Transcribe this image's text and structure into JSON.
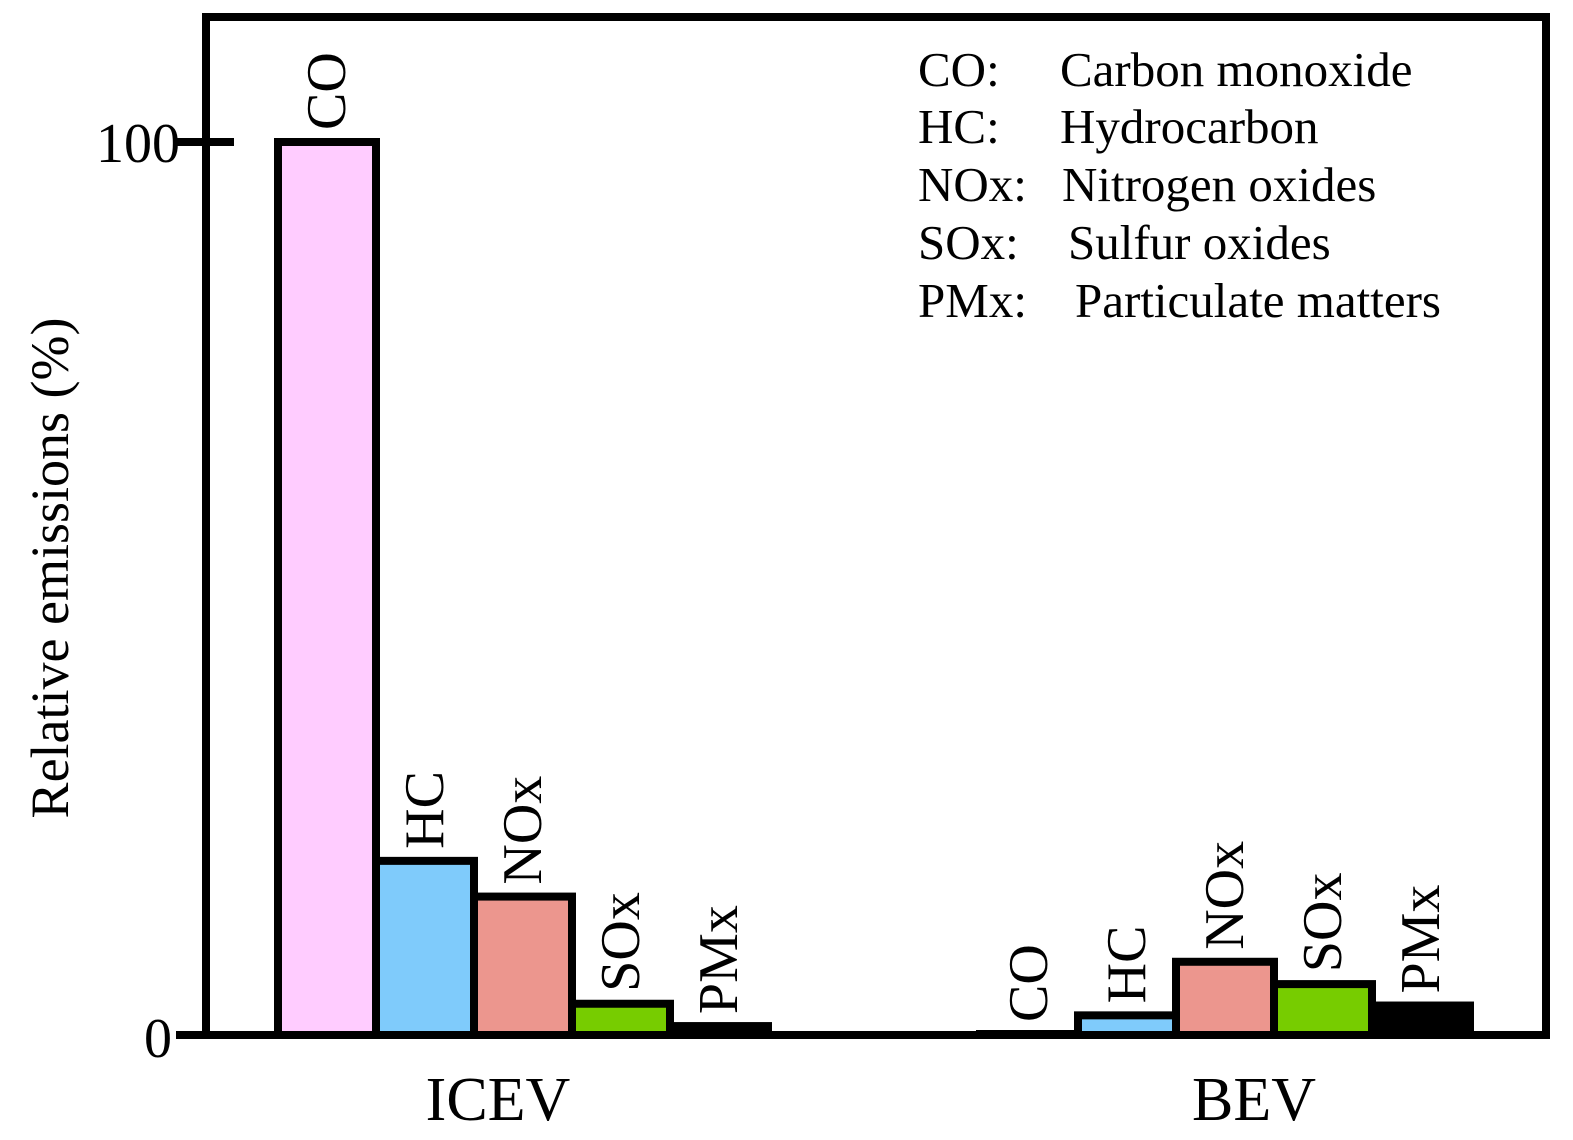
{
  "chart_data": {
    "type": "bar",
    "title": "",
    "xlabel": "",
    "ylabel": "Relative emissions (%)",
    "ylim": [
      0,
      100
    ],
    "yticks": [
      "0",
      "100"
    ],
    "categories": [
      "ICEV",
      "BEV"
    ],
    "series": [
      {
        "name": "CO",
        "bar_label": "CO",
        "color": "#ffccff",
        "values": [
          100,
          0
        ]
      },
      {
        "name": "HC",
        "bar_label": "HC",
        "color": "#7fcbfb",
        "values": [
          19.5,
          2.2
        ]
      },
      {
        "name": "NOx",
        "bar_label": "NOx",
        "color": "#ec968e",
        "values": [
          15.5,
          8.2
        ]
      },
      {
        "name": "SOx",
        "bar_label": "SOx",
        "color": "#77cc00",
        "values": [
          3.5,
          5.7
        ]
      },
      {
        "name": "PMx",
        "bar_label": "PMx",
        "color": "#000000",
        "values": [
          1.0,
          3.3
        ]
      }
    ],
    "legend": [
      {
        "abbr": "CO:",
        "desc": "Carbon monoxide"
      },
      {
        "abbr": "HC:",
        "desc": "Hydrocarbon"
      },
      {
        "abbr": "NOx:",
        "desc": "Nitrogen oxides"
      },
      {
        "abbr": "SOx:",
        "desc": "Sulfur oxides"
      },
      {
        "abbr": "PMx:",
        "desc": "Particulate matters"
      }
    ],
    "legend_position": "top-right",
    "grid": false
  }
}
